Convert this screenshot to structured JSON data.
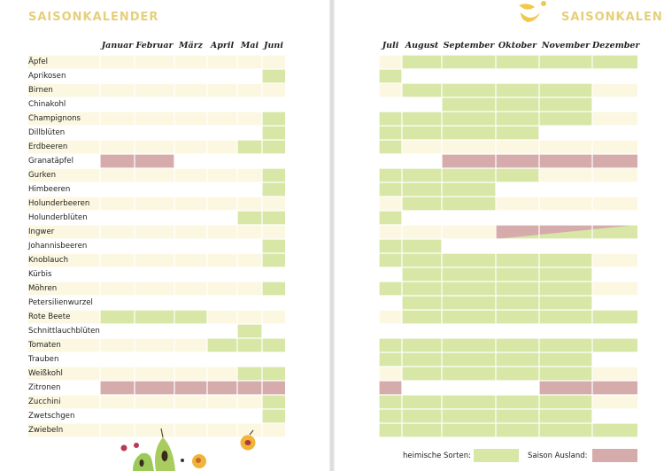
{
  "headers": {
    "left": "SAISONKALENDER",
    "right": "SAISONKALENDER"
  },
  "months": [
    "Januar",
    "Februar",
    "März",
    "April",
    "Mai",
    "Juni",
    "Juli",
    "August",
    "September",
    "Oktober",
    "November",
    "Dezember"
  ],
  "colors": {
    "heimisch": "#d8e6a6",
    "ausland": "#d6abac",
    "stripe": "#fcf7e1"
  },
  "legend": {
    "heimisch_label": "heimische Sorten:",
    "ausland_label": "Saison Ausland:"
  },
  "produce": [
    "Äpfel",
    "Aprikosen",
    "Birnen",
    "Chinakohl",
    "Champignons",
    "Dillblüten",
    "Erdbeeren",
    "Granatäpfel",
    "Gurken",
    "Himbeeren",
    "Holunderbeeren",
    "Holunderblüten",
    "Ingwer",
    "Johannisbeeren",
    "Knoblauch",
    "Kürbis",
    "Möhren",
    "Petersilienwurzel",
    "Rote Beete",
    "Schnittlauchblüten",
    "Tomaten",
    "Trauben",
    "Weißkohl",
    "Zitronen",
    "Zucchini",
    "Zwetschgen",
    "Zwiebeln"
  ],
  "season": {
    "heimisch": {
      "Äpfel": [
        8,
        9,
        10,
        11,
        12
      ],
      "Aprikosen": [
        6,
        7
      ],
      "Birnen": [
        8,
        9,
        10,
        11
      ],
      "Chinakohl": [
        9,
        10,
        11
      ],
      "Champignons": [
        6,
        7,
        8,
        9,
        10,
        11
      ],
      "Dillblüten": [
        6,
        7,
        8,
        9,
        10
      ],
      "Erdbeeren": [
        5,
        6,
        7
      ],
      "Gurken": [
        6,
        7,
        8,
        9,
        10
      ],
      "Himbeeren": [
        6,
        7,
        8,
        9
      ],
      "Holunderbeeren": [
        8,
        9
      ],
      "Holunderblüten": [
        5,
        6,
        7
      ],
      "Ingwer": [
        10,
        11,
        12
      ],
      "Johannisbeeren": [
        6,
        7,
        8
      ],
      "Knoblauch": [
        6,
        7,
        8,
        9,
        10,
        11
      ],
      "Kürbis": [
        8,
        9,
        10,
        11
      ],
      "Möhren": [
        6,
        7,
        8,
        9,
        10,
        11
      ],
      "Petersilienwurzel": [
        8,
        9,
        10,
        11
      ],
      "Rote Beete": [
        1,
        2,
        3,
        8,
        9,
        10,
        11,
        12
      ],
      "Schnittlauchblüten": [
        5
      ],
      "Tomaten": [
        4,
        5,
        6,
        7,
        8,
        9,
        10,
        11,
        12
      ],
      "Trauben": [
        7,
        8,
        9,
        10,
        11
      ],
      "Weißkohl": [
        5,
        6,
        8,
        9,
        10,
        11
      ],
      "Zucchini": [
        6,
        7,
        8,
        9,
        10,
        11
      ],
      "Zwetschgen": [
        6,
        7,
        8,
        9,
        10,
        11
      ],
      "Zwiebeln": [
        7,
        8,
        9,
        10,
        11,
        12
      ]
    },
    "ausland": {
      "Granatäpfel": [
        1,
        2,
        9,
        10,
        11,
        12
      ],
      "Ingwer": [
        10,
        11,
        12
      ],
      "Zitronen": [
        1,
        2,
        3,
        4,
        5,
        6,
        7,
        11,
        12
      ]
    }
  }
}
